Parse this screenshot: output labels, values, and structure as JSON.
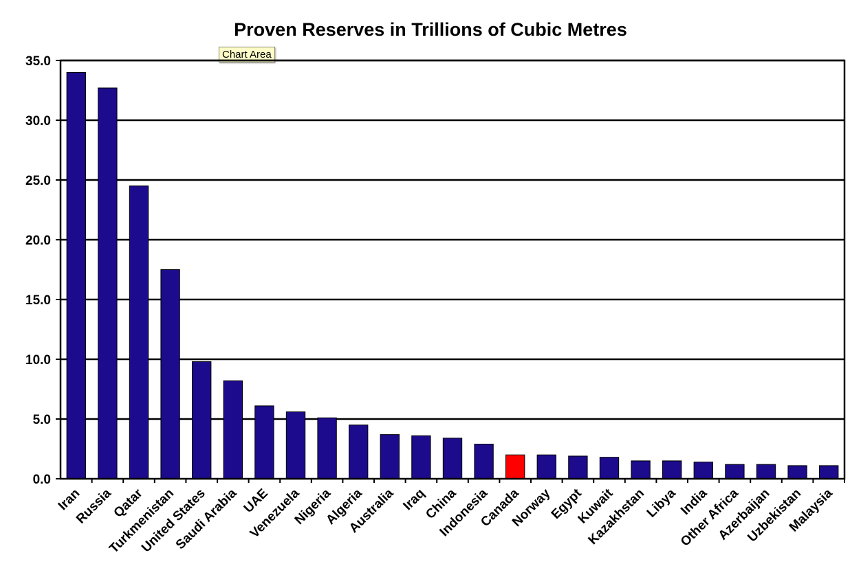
{
  "tooltip": "Chart Area",
  "colors": {
    "bar": "#1c0b8c",
    "highlight": "#ff0000",
    "grid": "#000000"
  },
  "chart_data": {
    "type": "bar",
    "title": "Proven Reserves in Trillions of Cubic Metres",
    "xlabel": "",
    "ylabel": "",
    "ylim": [
      0,
      35
    ],
    "yticks": [
      "0.0",
      "5.0",
      "10.0",
      "15.0",
      "20.0",
      "25.0",
      "30.0",
      "35.0"
    ],
    "grid": true,
    "highlight": "Canada",
    "categories": [
      "Iran",
      "Russia",
      "Qatar",
      "Turkmenistan",
      "United States",
      "Saudi Arabia",
      "UAE",
      "Venezuela",
      "Nigeria",
      "Algeria",
      "Australia",
      "Iraq",
      "China",
      "Indonesia",
      "Canada",
      "Norway",
      "Egypt",
      "Kuwait",
      "Kazakhstan",
      "Libya",
      "India",
      "Other Africa",
      "Azerbaijan",
      "Uzbekistan",
      "Malaysia"
    ],
    "values": [
      34.0,
      32.7,
      24.5,
      17.5,
      9.8,
      8.2,
      6.1,
      5.6,
      5.1,
      4.5,
      3.7,
      3.6,
      3.4,
      2.9,
      2.0,
      2.0,
      1.9,
      1.8,
      1.5,
      1.5,
      1.4,
      1.2,
      1.2,
      1.1,
      1.1
    ]
  }
}
